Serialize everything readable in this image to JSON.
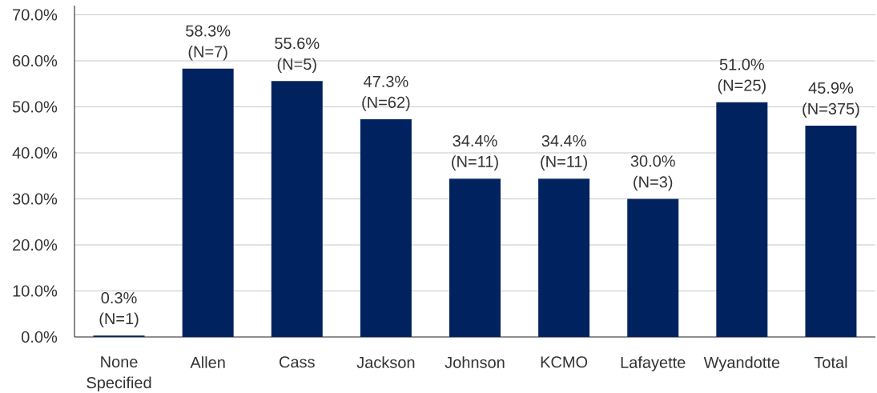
{
  "chart_data": {
    "type": "bar",
    "categories": [
      "None Specified",
      "Allen",
      "Cass",
      "Jackson",
      "Johnson",
      "KCMO",
      "Lafayette",
      "Wyandotte",
      "Total"
    ],
    "values": [
      0.3,
      58.3,
      55.6,
      47.3,
      34.4,
      34.4,
      30.0,
      51.0,
      45.9
    ],
    "color": "#002360",
    "value_labels": [
      "0.3% (N=1)",
      "58.3% (N=7)",
      "55.6% (N=5)",
      "47.3% (N=62)",
      "34.4% (N=11)",
      "34.4% (N=11)",
      "30.0% (N=3)",
      "51.0% (N=25)",
      "45.9% (N=375)"
    ],
    "ylim": [
      0,
      72
    ],
    "yticks": [
      {
        "value": 0,
        "label": "0.0%"
      },
      {
        "value": 10,
        "label": "10.0%"
      },
      {
        "value": 20,
        "label": "20.0%"
      },
      {
        "value": 30,
        "label": "30.0%"
      },
      {
        "value": 40,
        "label": "40.0%"
      },
      {
        "value": 50,
        "label": "50.0%"
      },
      {
        "value": 60,
        "label": "60.0%"
      },
      {
        "value": 70,
        "label": "70.0%"
      }
    ],
    "grid": "y"
  }
}
